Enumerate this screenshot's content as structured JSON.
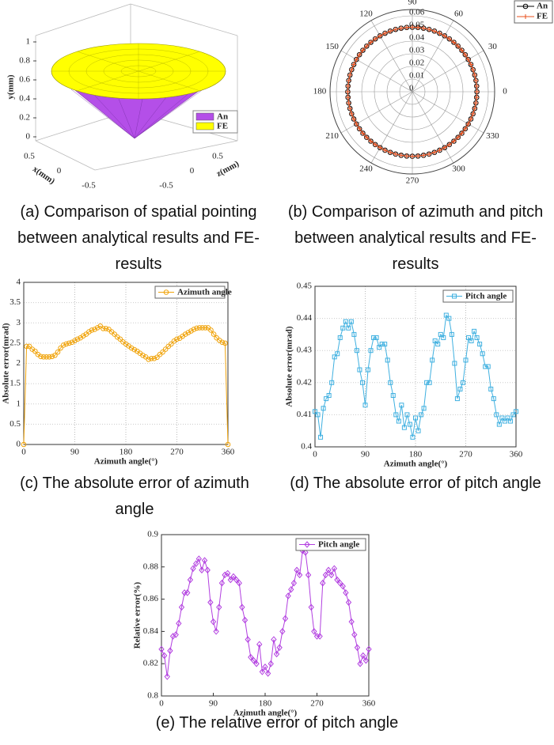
{
  "chart_data": [
    {
      "type": "surface3d",
      "caption": "(a) Comparison of spatial pointing between analytical results and FE-results",
      "xlabel": "x(mm)",
      "ylabel": "y(mm)",
      "zlabel": "z(mm)",
      "xticks": [
        0.5,
        0,
        -0.5
      ],
      "yticks": [
        0,
        0.2,
        0.4,
        0.6,
        0.8,
        1
      ],
      "zticks": [
        -0.5,
        0,
        0.5
      ],
      "series": [
        {
          "name": "An",
          "color": "#b44fe8"
        },
        {
          "name": "FE",
          "color": "#ffff00"
        }
      ]
    },
    {
      "type": "polar",
      "caption": "(b) Comparison of azimuth and pitch between analytical results and FE-results",
      "rlim": [
        0,
        0.065
      ],
      "rticks": [
        0,
        0.01,
        0.02,
        0.03,
        0.04,
        0.05,
        0.06
      ],
      "thetaticks": [
        0,
        30,
        60,
        90,
        120,
        150,
        180,
        210,
        240,
        270,
        300,
        330
      ],
      "theta": [
        0,
        5,
        10,
        15,
        20,
        25,
        30,
        35,
        40,
        45,
        50,
        55,
        60,
        65,
        70,
        75,
        80,
        85,
        90,
        95,
        100,
        105,
        110,
        115,
        120,
        125,
        130,
        135,
        140,
        145,
        150,
        155,
        160,
        165,
        170,
        175,
        180,
        185,
        190,
        195,
        200,
        205,
        210,
        215,
        220,
        225,
        230,
        235,
        240,
        245,
        250,
        255,
        260,
        265,
        270,
        275,
        280,
        285,
        290,
        295,
        300,
        305,
        310,
        315,
        320,
        325,
        330,
        335,
        340,
        345,
        350,
        355
      ],
      "series": [
        {
          "name": "An",
          "color": "#000000",
          "marker": "circle",
          "values": [
            0.051,
            0.051,
            0.051,
            0.051,
            0.051,
            0.051,
            0.051,
            0.051,
            0.051,
            0.051,
            0.051,
            0.051,
            0.051,
            0.051,
            0.051,
            0.051,
            0.051,
            0.051,
            0.051,
            0.051,
            0.051,
            0.051,
            0.051,
            0.051,
            0.051,
            0.051,
            0.051,
            0.051,
            0.051,
            0.051,
            0.051,
            0.051,
            0.051,
            0.051,
            0.051,
            0.051,
            0.051,
            0.051,
            0.051,
            0.051,
            0.051,
            0.051,
            0.051,
            0.051,
            0.051,
            0.051,
            0.051,
            0.051,
            0.051,
            0.051,
            0.051,
            0.051,
            0.051,
            0.051,
            0.051,
            0.051,
            0.051,
            0.051,
            0.051,
            0.051,
            0.051,
            0.051,
            0.051,
            0.051,
            0.051,
            0.051,
            0.051,
            0.051,
            0.051,
            0.051,
            0.051,
            0.051
          ]
        },
        {
          "name": "FE",
          "color": "#e8501e",
          "marker": "plus",
          "values": [
            0.051,
            0.051,
            0.051,
            0.051,
            0.051,
            0.051,
            0.051,
            0.051,
            0.051,
            0.051,
            0.051,
            0.051,
            0.051,
            0.051,
            0.051,
            0.051,
            0.051,
            0.051,
            0.051,
            0.051,
            0.051,
            0.051,
            0.051,
            0.051,
            0.051,
            0.051,
            0.051,
            0.051,
            0.051,
            0.051,
            0.051,
            0.051,
            0.051,
            0.051,
            0.051,
            0.051,
            0.051,
            0.051,
            0.051,
            0.051,
            0.051,
            0.051,
            0.051,
            0.051,
            0.051,
            0.051,
            0.051,
            0.051,
            0.051,
            0.051,
            0.051,
            0.051,
            0.051,
            0.051,
            0.051,
            0.051,
            0.051,
            0.051,
            0.051,
            0.051,
            0.051,
            0.051,
            0.051,
            0.051,
            0.051,
            0.051,
            0.051,
            0.051,
            0.051,
            0.051,
            0.051,
            0.051
          ]
        }
      ],
      "legend": "upper right"
    },
    {
      "type": "line",
      "caption": "(c) The absolute error of azimuth angle",
      "xlabel": "Azimuth angle(°)",
      "ylabel": "Absolute error(mrad)",
      "xlim": [
        0,
        360
      ],
      "xticks": [
        0,
        90,
        180,
        270,
        360
      ],
      "ylim": [
        0,
        4
      ],
      "yticks": [
        0,
        0.5,
        1,
        1.5,
        2,
        2.5,
        3,
        3.5,
        4
      ],
      "grid": true,
      "x": [
        0,
        5,
        10,
        15,
        20,
        25,
        30,
        35,
        40,
        45,
        50,
        55,
        60,
        65,
        70,
        75,
        80,
        85,
        90,
        95,
        100,
        105,
        110,
        115,
        120,
        125,
        130,
        135,
        140,
        145,
        150,
        155,
        160,
        165,
        170,
        175,
        180,
        185,
        190,
        195,
        200,
        205,
        210,
        215,
        220,
        225,
        230,
        235,
        240,
        245,
        250,
        255,
        260,
        265,
        270,
        275,
        280,
        285,
        290,
        295,
        300,
        305,
        310,
        315,
        320,
        325,
        330,
        335,
        340,
        345,
        350,
        355,
        360
      ],
      "series": [
        {
          "name": "Azimuth angle",
          "color": "#f0a30a",
          "marker": "circle",
          "values": [
            0,
            2.42,
            2.42,
            2.35,
            2.3,
            2.22,
            2.17,
            2.16,
            2.16,
            2.16,
            2.17,
            2.2,
            2.28,
            2.38,
            2.45,
            2.48,
            2.5,
            2.52,
            2.56,
            2.6,
            2.63,
            2.68,
            2.72,
            2.78,
            2.82,
            2.84,
            2.88,
            2.92,
            2.86,
            2.86,
            2.84,
            2.78,
            2.72,
            2.65,
            2.6,
            2.53,
            2.48,
            2.43,
            2.38,
            2.34,
            2.3,
            2.25,
            2.2,
            2.16,
            2.1,
            2.12,
            2.12,
            2.15,
            2.22,
            2.28,
            2.35,
            2.42,
            2.48,
            2.55,
            2.6,
            2.62,
            2.67,
            2.72,
            2.76,
            2.8,
            2.84,
            2.87,
            2.88,
            2.88,
            2.88,
            2.88,
            2.82,
            2.72,
            2.63,
            2.57,
            2.52,
            2.5,
            0
          ]
        }
      ],
      "legend": "upper right"
    },
    {
      "type": "line",
      "caption": "(d) The absolute error of pitch angle",
      "xlabel": "Azimuth angle(°)",
      "ylabel": "Absolute error(mrad)",
      "xlim": [
        0,
        360
      ],
      "xticks": [
        0,
        90,
        180,
        270,
        360
      ],
      "ylim": [
        0.4,
        0.45
      ],
      "yticks": [
        0.4,
        0.41,
        0.42,
        0.43,
        0.44,
        0.45
      ],
      "grid": true,
      "x": [
        0,
        5,
        10,
        15,
        20,
        25,
        30,
        35,
        40,
        45,
        50,
        55,
        60,
        65,
        70,
        75,
        80,
        85,
        90,
        95,
        100,
        105,
        110,
        115,
        120,
        125,
        130,
        135,
        140,
        145,
        150,
        155,
        160,
        165,
        170,
        175,
        180,
        185,
        190,
        195,
        200,
        205,
        210,
        215,
        220,
        225,
        230,
        235,
        240,
        245,
        250,
        255,
        260,
        265,
        270,
        275,
        280,
        285,
        290,
        295,
        300,
        305,
        310,
        315,
        320,
        325,
        330,
        335,
        340,
        345,
        350,
        355,
        360
      ],
      "series": [
        {
          "name": "Pitch angle",
          "color": "#3fb0e0",
          "marker": "square",
          "values": [
            0.411,
            0.41,
            0.403,
            0.412,
            0.415,
            0.416,
            0.42,
            0.428,
            0.429,
            0.434,
            0.437,
            0.439,
            0.437,
            0.439,
            0.435,
            0.43,
            0.424,
            0.42,
            0.413,
            0.424,
            0.43,
            0.434,
            0.434,
            0.431,
            0.432,
            0.432,
            0.427,
            0.42,
            0.416,
            0.41,
            0.408,
            0.413,
            0.406,
            0.41,
            0.407,
            0.403,
            0.409,
            0.405,
            0.41,
            0.412,
            0.42,
            0.42,
            0.427,
            0.433,
            0.432,
            0.435,
            0.434,
            0.441,
            0.44,
            0.435,
            0.426,
            0.415,
            0.418,
            0.42,
            0.427,
            0.434,
            0.433,
            0.436,
            0.434,
            0.432,
            0.429,
            0.425,
            0.425,
            0.418,
            0.415,
            0.41,
            0.407,
            0.409,
            0.408,
            0.409,
            0.408,
            0.41,
            0.411
          ]
        }
      ],
      "legend": "upper right"
    },
    {
      "type": "line",
      "caption": "(e) The relative error of pitch angle",
      "xlabel": "Azimuth angle(°)",
      "ylabel": "Relative error(%)",
      "xlim": [
        0,
        360
      ],
      "xticks": [
        0,
        90,
        180,
        270,
        360
      ],
      "ylim": [
        0.8,
        0.9
      ],
      "yticks": [
        0.8,
        0.82,
        0.84,
        0.86,
        0.88,
        0.9
      ],
      "grid": false,
      "x": [
        0,
        5,
        10,
        15,
        20,
        25,
        30,
        35,
        40,
        45,
        50,
        55,
        60,
        65,
        70,
        75,
        80,
        85,
        90,
        95,
        100,
        105,
        110,
        115,
        120,
        125,
        130,
        135,
        140,
        145,
        150,
        155,
        160,
        165,
        170,
        175,
        180,
        185,
        190,
        195,
        200,
        205,
        210,
        215,
        220,
        225,
        230,
        235,
        240,
        245,
        250,
        255,
        260,
        265,
        270,
        275,
        280,
        285,
        290,
        295,
        300,
        305,
        310,
        315,
        320,
        325,
        330,
        335,
        340,
        345,
        350,
        355,
        360
      ],
      "series": [
        {
          "name": "Pitch angle",
          "color": "#b23fe0",
          "marker": "diamond",
          "values": [
            0.829,
            0.825,
            0.812,
            0.828,
            0.837,
            0.838,
            0.845,
            0.855,
            0.864,
            0.864,
            0.872,
            0.879,
            0.882,
            0.885,
            0.878,
            0.884,
            0.878,
            0.858,
            0.846,
            0.84,
            0.855,
            0.87,
            0.875,
            0.876,
            0.872,
            0.874,
            0.872,
            0.87,
            0.855,
            0.847,
            0.835,
            0.824,
            0.822,
            0.82,
            0.832,
            0.815,
            0.818,
            0.814,
            0.82,
            0.835,
            0.826,
            0.83,
            0.84,
            0.848,
            0.862,
            0.866,
            0.87,
            0.878,
            0.875,
            0.89,
            0.889,
            0.875,
            0.855,
            0.84,
            0.837,
            0.837,
            0.87,
            0.875,
            0.878,
            0.875,
            0.879,
            0.872,
            0.87,
            0.868,
            0.864,
            0.858,
            0.846,
            0.838,
            0.83,
            0.82,
            0.825,
            0.822,
            0.829
          ]
        }
      ],
      "legend": "upper right"
    }
  ]
}
